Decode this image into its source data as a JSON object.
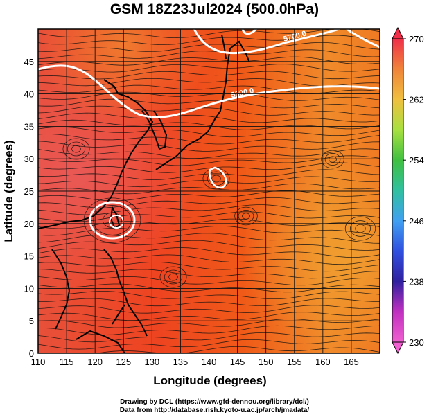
{
  "title": "GSM 18Z23Jul2024 (500.0hPa)",
  "credits": {
    "line1": "Drawing by DCL (https://www.gfd-dennou.org/library/dcl/)",
    "line2": "Data from http://database.rish.kyoto-u.ac.jp/arch/jmadata/"
  },
  "map": {
    "xlabel": "Longitude (degrees)",
    "ylabel": "Latitude  (degrees)",
    "xlim": [
      110,
      170
    ],
    "ylim": [
      0,
      50
    ],
    "x_ticks": [
      "110",
      "115",
      "120",
      "125",
      "130",
      "135",
      "140",
      "145",
      "150",
      "155",
      "160",
      "165"
    ],
    "y_ticks": [
      "0",
      "5",
      "10",
      "15",
      "20",
      "25",
      "30",
      "35",
      "40",
      "45"
    ],
    "grid": true,
    "background": "temperature shading with streamlines and coastlines"
  },
  "colorbar": {
    "tick_labels": [
      "270",
      "262",
      "254",
      "246",
      "238",
      "230"
    ],
    "colors": [
      "#f0304a",
      "#f0843a",
      "#f0c040",
      "#a8e040",
      "#40c040",
      "#30c0a0",
      "#40a0f0",
      "#3050e0",
      "#3020a0",
      "#c030c0",
      "#f060d0"
    ]
  },
  "contours": [
    {
      "label": "5800.0"
    },
    {
      "label": "5700.0"
    }
  ]
}
